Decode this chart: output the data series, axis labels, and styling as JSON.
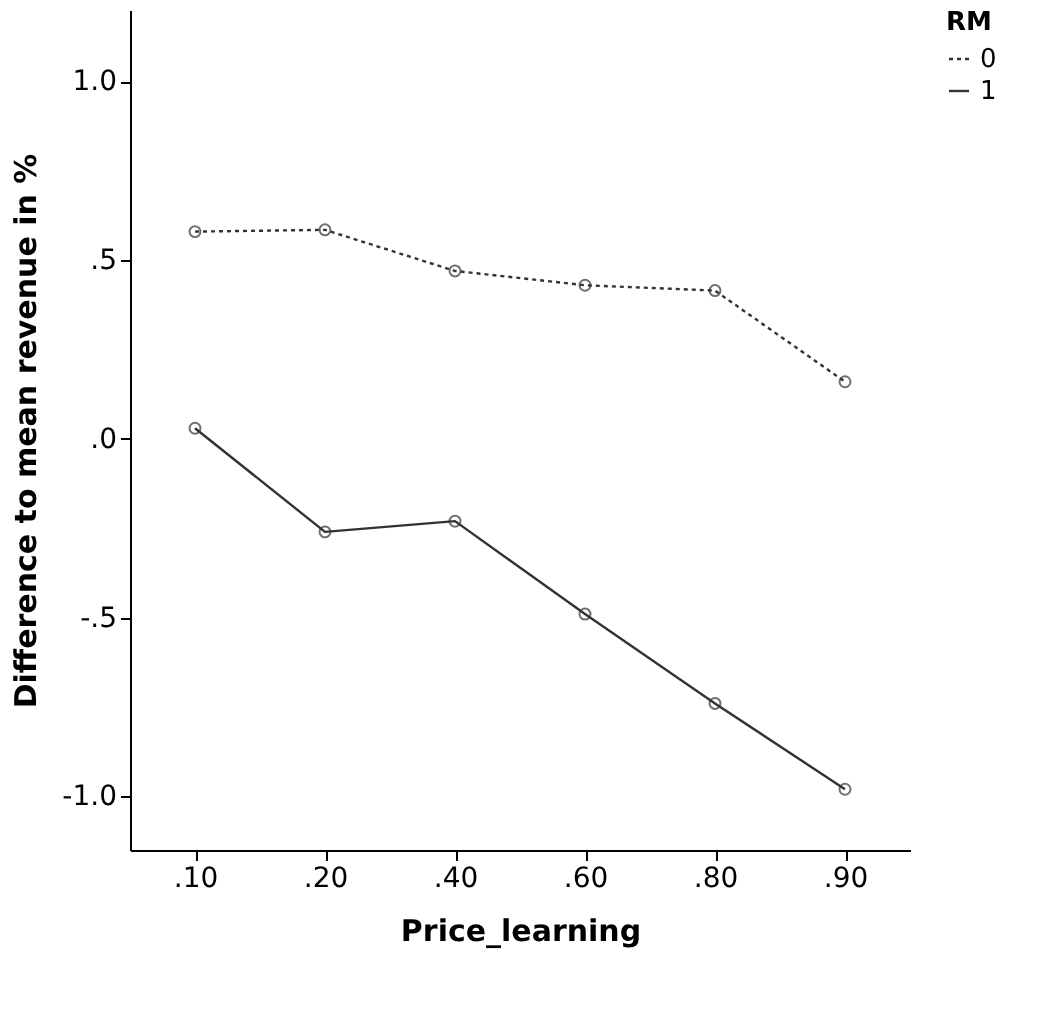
{
  "chart_data": {
    "type": "line",
    "xlabel": "Price_learning",
    "ylabel": "Difference to mean revenue in %",
    "legend_title": "RM",
    "categories": [
      ".10",
      ".20",
      ".40",
      ".60",
      ".80",
      ".90"
    ],
    "series": [
      {
        "name": "0",
        "color": "#333333",
        "line_style": "dotted",
        "values": [
          0.58,
          0.585,
          0.47,
          0.43,
          0.415,
          0.16
        ]
      },
      {
        "name": "1",
        "color": "#333333",
        "line_style": "solid",
        "values": [
          0.03,
          -0.26,
          -0.23,
          -0.49,
          -0.74,
          -0.98
        ]
      }
    ],
    "ylim": [
      -1.15,
      1.2
    ],
    "yticks": [
      {
        "value": 1.0,
        "label": "1.0"
      },
      {
        "value": 0.5,
        "label": ".5"
      },
      {
        "value": 0.0,
        "label": ".0"
      },
      {
        "value": -0.5,
        "label": "-.5"
      },
      {
        "value": -1.0,
        "label": "-1.0"
      }
    ],
    "marker": "circle",
    "legend": "top right",
    "grid": false
  }
}
